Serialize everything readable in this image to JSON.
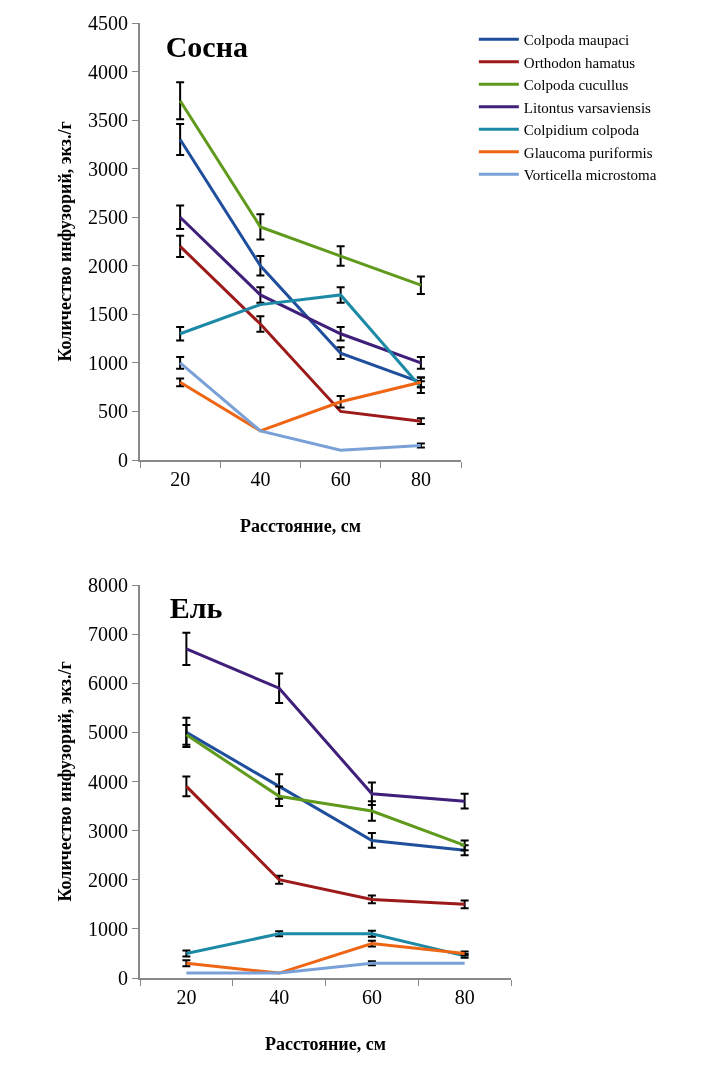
{
  "chart_data": [
    {
      "type": "line",
      "title": "Сосна",
      "xlabel": "Расстояние, см",
      "ylabel": "Количество инфузорий, экз./г",
      "categories": [
        "20",
        "40",
        "60",
        "80"
      ],
      "ylim": [
        0,
        4500
      ],
      "yticks": [
        0,
        500,
        1000,
        1500,
        2000,
        2500,
        3000,
        3500,
        4000,
        4500
      ],
      "grid": false,
      "legend": "right",
      "line_style": "solid",
      "series": [
        {
          "name": "Colpoda maupaci",
          "color": "#1f4e9c",
          "values": [
            3300,
            2000,
            1100,
            800
          ],
          "errors": [
            160,
            100,
            60,
            50
          ]
        },
        {
          "name": "Orthodon hamatus",
          "color": "#9c1a1a",
          "values": [
            2200,
            1400,
            500,
            400
          ],
          "errors": [
            110,
            80,
            null,
            30
          ]
        },
        {
          "name": "Colpoda cucullus",
          "color": "#5f9a1c",
          "values": [
            3700,
            2400,
            2100,
            1800
          ],
          "errors": [
            190,
            130,
            100,
            90
          ]
        },
        {
          "name": "Litontus varsaviensis",
          "color": "#3f1f7a",
          "values": [
            2500,
            1700,
            1300,
            1000
          ],
          "errors": [
            120,
            80,
            70,
            60
          ]
        },
        {
          "name": "Colpidium colpoda",
          "color": "#1c8aa6",
          "values": [
            1300,
            1600,
            1700,
            750
          ],
          "errors": [
            70,
            null,
            80,
            60
          ]
        },
        {
          "name": "Glaucoma puriformis",
          "color": "#ee6514",
          "values": [
            800,
            300,
            600,
            800
          ],
          "errors": [
            40,
            null,
            60,
            50
          ]
        },
        {
          "name": "Vorticella microstoma",
          "color": "#7aa0d8",
          "values": [
            1000,
            300,
            100,
            150
          ],
          "errors": [
            60,
            null,
            null,
            20
          ]
        }
      ]
    },
    {
      "type": "line",
      "title": "Ель",
      "xlabel": "Расстояние, см",
      "ylabel": "Количество инфузорий, экз./г",
      "categories": [
        "20",
        "40",
        "60",
        "80"
      ],
      "ylim": [
        0,
        8000
      ],
      "yticks": [
        0,
        1000,
        2000,
        3000,
        4000,
        5000,
        6000,
        7000,
        8000
      ],
      "grid": false,
      "legend": false,
      "line_style": "solid",
      "series": [
        {
          "color": "#1f4e9c",
          "values": [
            5000,
            3900,
            2800,
            2600
          ],
          "errors": [
            300,
            250,
            150,
            100
          ]
        },
        {
          "color": "#9c1a1a",
          "values": [
            3900,
            2000,
            1600,
            1500
          ],
          "errors": [
            200,
            80,
            80,
            80
          ]
        },
        {
          "color": "#5f9a1c",
          "values": [
            4950,
            3700,
            3400,
            2700
          ],
          "errors": [
            200,
            200,
            200,
            100
          ]
        },
        {
          "color": "#3f1f7a",
          "values": [
            6700,
            5900,
            3750,
            3600
          ],
          "errors": [
            330,
            300,
            230,
            150
          ]
        },
        {
          "color": "#1c8aa6",
          "values": [
            500,
            900,
            900,
            450
          ],
          "errors": [
            60,
            50,
            60,
            40
          ]
        },
        {
          "color": "#ee6514",
          "values": [
            300,
            100,
            700,
            500
          ],
          "errors": [
            60,
            null,
            60,
            40
          ]
        },
        {
          "color": "#7aa0d8",
          "values": [
            100,
            100,
            300,
            300
          ],
          "errors": [
            null,
            null,
            40,
            null
          ]
        }
      ]
    }
  ]
}
